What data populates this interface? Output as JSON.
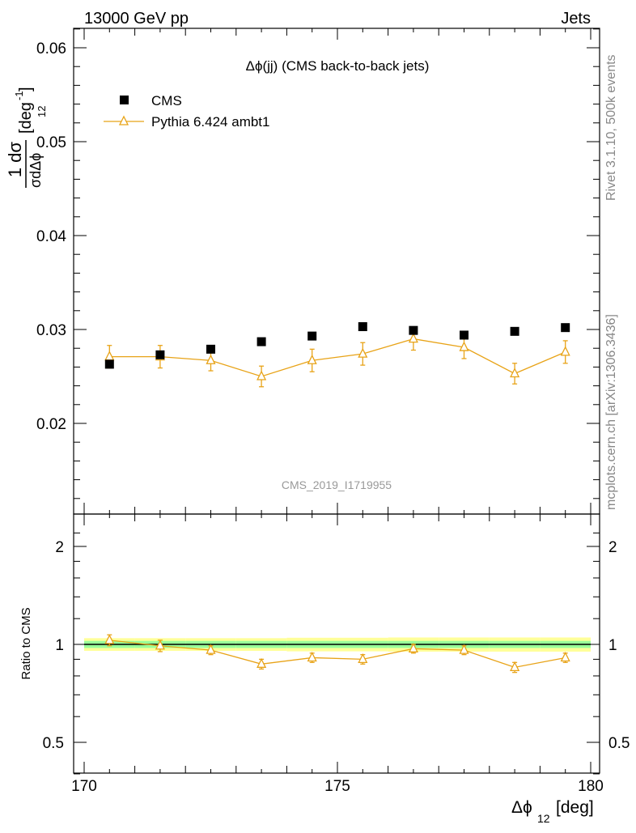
{
  "header": {
    "left": "13000 GeV pp",
    "right": "Jets"
  },
  "side": {
    "rivet": "Rivet 3.1.10,  500k events",
    "mcplots": "mcplots.cern.ch [arXiv:1306.3436]"
  },
  "plot": {
    "title": "Δϕ(jj) (CMS back-to-back jets)",
    "watermark": "CMS_2019_I1719955",
    "ylabel_main": {
      "num": "1 dσ",
      "den": "σdΔϕ",
      "den_sub": "12",
      "unit": "[deg",
      "unit_sup": "-1",
      "unit_close": "]"
    },
    "ylabel_ratio": "Ratio to CMS",
    "xlabel": {
      "main": "Δϕ",
      "sub": "12",
      "unit": "[deg]"
    }
  },
  "legend": {
    "data": "CMS",
    "mc": "Pythia 6.424 ambt1"
  },
  "colors": {
    "data": "#000000",
    "mc": "#e8a317",
    "band_outer": "#ffff99",
    "band_inner": "#99ff99"
  },
  "chart_data": {
    "type": "scatter",
    "x": [
      170.5,
      171.5,
      172.5,
      173.5,
      174.5,
      175.5,
      176.5,
      177.5,
      178.5,
      179.5
    ],
    "xlim": [
      170,
      180
    ],
    "x_ticks": [
      "170",
      "175",
      "180"
    ],
    "main": {
      "ylim": [
        0.011,
        0.062
      ],
      "y_ticks": [
        "0.02",
        "0.03",
        "0.04",
        "0.05",
        "0.06"
      ],
      "series": [
        {
          "name": "CMS",
          "values": [
            0.0263,
            0.0273,
            0.0279,
            0.0287,
            0.0293,
            0.0303,
            0.0299,
            0.0294,
            0.0298,
            0.0302
          ],
          "errors": [
            0.0003,
            0.0003,
            0.0003,
            0.0003,
            0.0003,
            0.0003,
            0.0003,
            0.0003,
            0.0003,
            0.0003
          ]
        },
        {
          "name": "Pythia 6.424 ambt1",
          "values": [
            0.0271,
            0.0271,
            0.0267,
            0.025,
            0.0267,
            0.0274,
            0.029,
            0.0281,
            0.0253,
            0.0276
          ],
          "errors": [
            0.0012,
            0.0012,
            0.0011,
            0.0011,
            0.0012,
            0.0012,
            0.0012,
            0.0012,
            0.0011,
            0.0012
          ]
        }
      ]
    },
    "ratio": {
      "ylim": [
        0.35,
        2.3
      ],
      "y_ticks": [
        "0.5",
        "1",
        "2"
      ],
      "values": [
        1.03,
        0.99,
        0.96,
        0.87,
        0.91,
        0.9,
        0.97,
        0.96,
        0.85,
        0.91
      ],
      "errors": [
        0.04,
        0.04,
        0.03,
        0.03,
        0.03,
        0.03,
        0.03,
        0.03,
        0.03,
        0.03
      ],
      "band_inner": [
        0.025,
        0.025,
        0.025,
        0.025,
        0.025,
        0.025,
        0.025,
        0.025,
        0.025,
        0.025
      ],
      "band_outer": [
        0.045,
        0.045,
        0.045,
        0.045,
        0.048,
        0.048,
        0.05,
        0.05,
        0.05,
        0.05
      ]
    }
  }
}
